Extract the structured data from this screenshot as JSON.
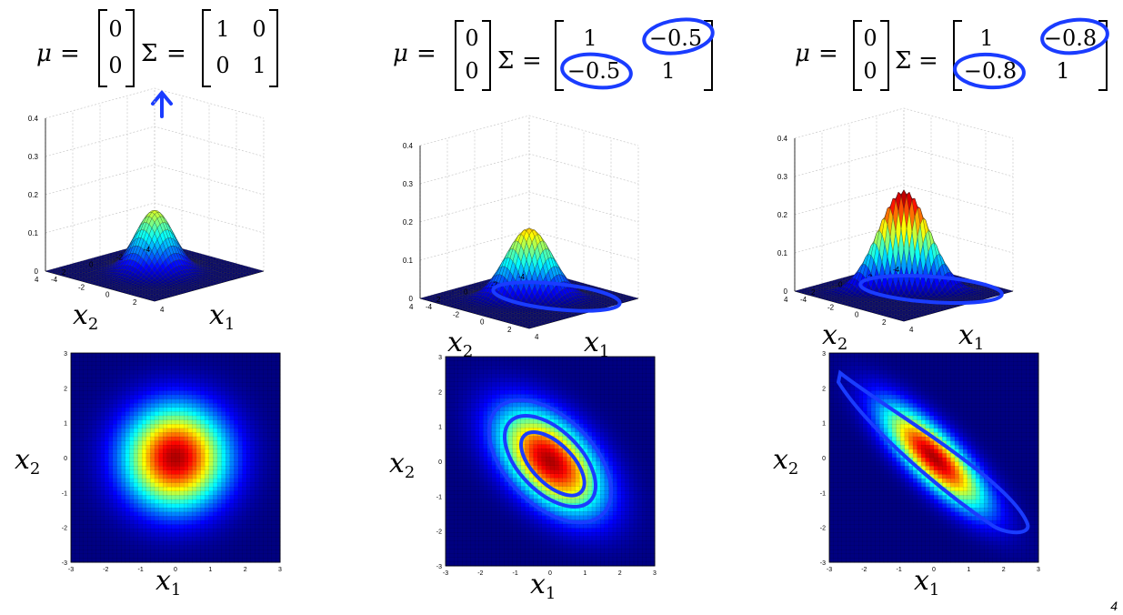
{
  "panels": [
    {
      "mu": [
        "0",
        "0"
      ],
      "sigma": [
        [
          "1",
          "0"
        ],
        [
          "0",
          "1"
        ]
      ],
      "rho": 0.0,
      "annotation": "arrow-under-sigma"
    },
    {
      "mu": [
        "0",
        "0"
      ],
      "sigma": [
        [
          "1",
          "−0.5"
        ],
        [
          "−0.5",
          "1"
        ]
      ],
      "rho": -0.5,
      "annotation": "circled-off-diagonal"
    },
    {
      "mu": [
        "0",
        "0"
      ],
      "sigma": [
        [
          "1",
          "−0.8"
        ],
        [
          "−0.8",
          "1"
        ]
      ],
      "rho": -0.8,
      "annotation": "circled-off-diagonal"
    }
  ],
  "symbols": {
    "mu": "μ",
    "sigma": "Σ",
    "equals": "="
  },
  "labels": {
    "x1": "x",
    "x1_sub": "1",
    "x2": "x",
    "x2_sub": "2"
  },
  "surface_z_ticks": [
    "0.4",
    "0.3",
    "0.2",
    "0.1",
    "0"
  ],
  "surface_xy_ticks": [
    "4",
    "2",
    "0",
    "-2",
    "-4"
  ],
  "heatmap_ticks": [
    "3",
    "2",
    "1",
    "0",
    "-1",
    "-2",
    "-3"
  ],
  "heatmap_x_ticks": [
    "-3",
    "-2",
    "-1",
    "0",
    "1",
    "2",
    "3"
  ],
  "annotation_color": "#1a3cff",
  "page_number": "4"
}
